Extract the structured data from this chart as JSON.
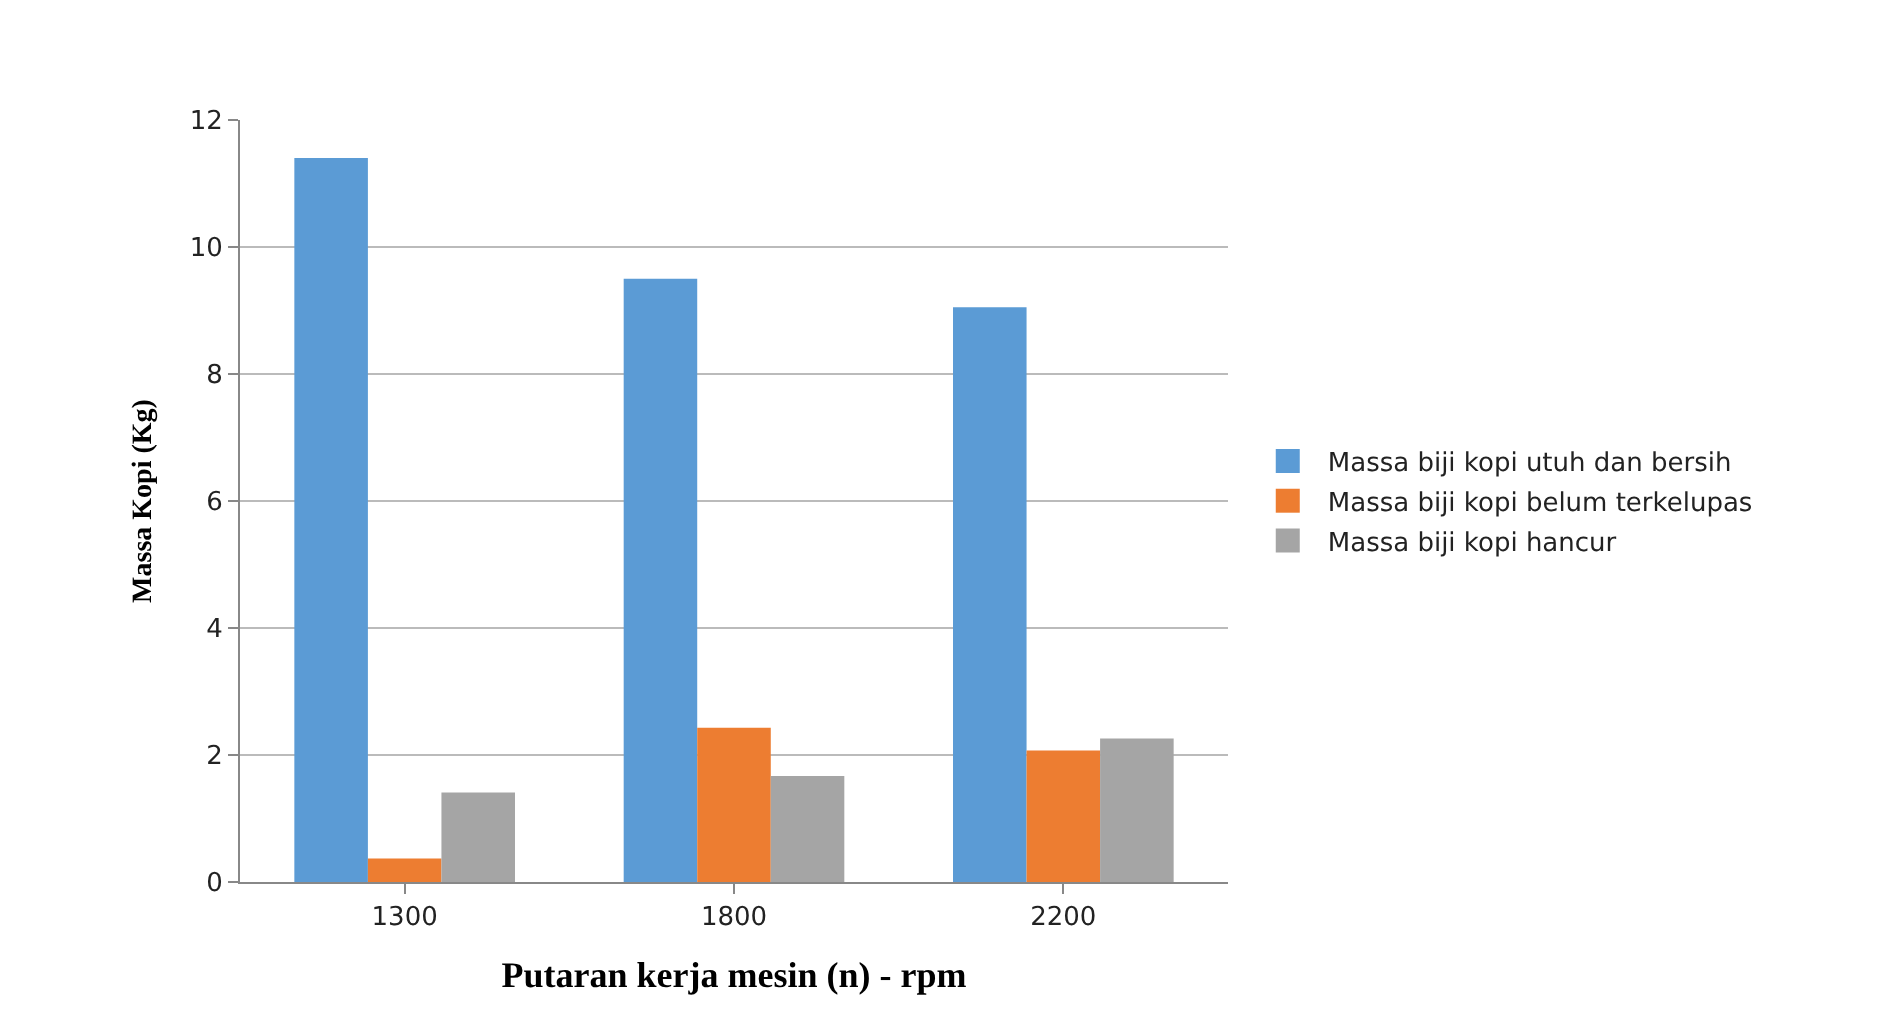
{
  "chart_data": {
    "type": "bar",
    "xlabel": "Putaran kerja mesin (n) - rpm",
    "ylabel": "Massa Kopi (Kg)",
    "categories": [
      "1300",
      "1800",
      "2200"
    ],
    "series": [
      {
        "name": "Massa biji kopi utuh dan bersih",
        "color": "#5b9bd5",
        "values": [
          11.4,
          9.5,
          9.05
        ]
      },
      {
        "name": "Massa biji kopi belum terkelupas",
        "color": "#ed7d31",
        "values": [
          0.37,
          2.43,
          2.07
        ]
      },
      {
        "name": "Massa biji kopi hancur",
        "color": "#a5a5a5",
        "values": [
          1.41,
          1.67,
          2.26
        ]
      }
    ],
    "ylim": [
      0,
      12
    ],
    "yticks": [
      0,
      2,
      4,
      6,
      8,
      10,
      12
    ],
    "grid": "y",
    "legend": "right"
  }
}
